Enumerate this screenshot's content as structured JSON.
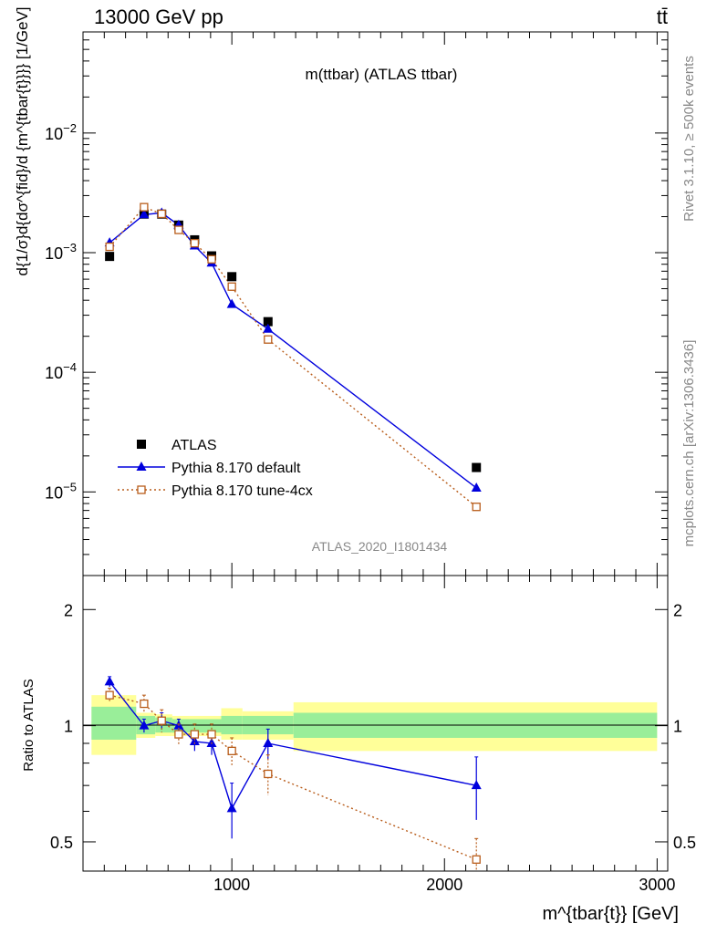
{
  "header": {
    "left": "13000 GeV pp",
    "right": "tt̄"
  },
  "side_labels": {
    "rivet": "Rivet 3.1.10, ≥ 500k events",
    "mcplots": "mcplots.cern.ch [arXiv:1306.3436]"
  },
  "chart_data": [
    {
      "type": "scatter",
      "panel": "main",
      "title": "m(ttbar) (ATLAS ttbar)",
      "watermark": "ATLAS_2020_I1801434",
      "ylabel": "d{1/σ}d{dσ^{fid}/d {m^{tbar{t}}}} [1/GeV]",
      "yscale": "log",
      "ylim": [
        2e-06,
        0.07
      ],
      "xlim": [
        300,
        3050
      ],
      "legend_position": "bottom-left",
      "colors": {
        "data": "#000000",
        "default": "#0000dd",
        "tune": "#b85c1a"
      },
      "series": [
        {
          "name": "ATLAS",
          "marker": "square",
          "x": [
            425,
            587,
            670,
            750,
            825,
            905,
            1000,
            1170,
            2150
          ],
          "y": [
            0.00093,
            0.0021,
            0.0021,
            0.0017,
            0.00128,
            0.00094,
            0.00063,
            0.000265,
            1.6e-05
          ]
        },
        {
          "name": "Pythia 8.170 default",
          "marker": "triangle",
          "x": [
            425,
            587,
            670,
            750,
            825,
            905,
            1000,
            1170,
            2150
          ],
          "y": [
            0.00121,
            0.00208,
            0.00215,
            0.0017,
            0.00114,
            0.00082,
            0.00037,
            0.00023,
            1.08e-05
          ]
        },
        {
          "name": "Pythia 8.170 tune-4cx",
          "marker": "open-square",
          "x": [
            425,
            587,
            670,
            750,
            825,
            905,
            1000,
            1170,
            2150
          ],
          "y": [
            0.00112,
            0.0024,
            0.00211,
            0.00155,
            0.0012,
            0.00088,
            0.00052,
            0.000188,
            7.5e-06
          ]
        }
      ],
      "yticks": [
        {
          "value": 0.01,
          "base": "10",
          "exp": "−2"
        },
        {
          "value": 0.001,
          "base": "10",
          "exp": "−3"
        },
        {
          "value": 0.0001,
          "base": "10",
          "exp": "−4"
        },
        {
          "value": 1e-05,
          "base": "10",
          "exp": "−5"
        }
      ]
    },
    {
      "type": "scatter",
      "panel": "ratio",
      "ylabel": "Ratio to ATLAS",
      "xlabel": "m^{tbar{t}} [GeV]",
      "yscale": "log",
      "ylim": [
        0.42,
        2.45
      ],
      "xlim": [
        300,
        3050
      ],
      "xticks": [
        1000,
        2000,
        3000
      ],
      "yticks": [
        {
          "value": 0.5,
          "label": "0.5"
        },
        {
          "value": 1,
          "label": "1"
        },
        {
          "value": 2,
          "label": "2"
        }
      ],
      "bands": [
        {
          "x0": 340,
          "x1": 550,
          "inner": [
            0.92,
            1.12
          ],
          "outer": [
            0.84,
            1.2
          ]
        },
        {
          "x0": 550,
          "x1": 640,
          "inner": [
            0.95,
            1.06
          ],
          "outer": [
            0.93,
            1.08
          ]
        },
        {
          "x0": 640,
          "x1": 720,
          "inner": [
            0.96,
            1.05
          ],
          "outer": [
            0.94,
            1.07
          ]
        },
        {
          "x0": 720,
          "x1": 800,
          "inner": [
            0.96,
            1.04
          ],
          "outer": [
            0.94,
            1.06
          ]
        },
        {
          "x0": 800,
          "x1": 950,
          "inner": [
            0.96,
            1.04
          ],
          "outer": [
            0.94,
            1.06
          ]
        },
        {
          "x0": 950,
          "x1": 1050,
          "inner": [
            0.95,
            1.06
          ],
          "outer": [
            0.92,
            1.11
          ]
        },
        {
          "x0": 1050,
          "x1": 1290,
          "inner": [
            0.95,
            1.06
          ],
          "outer": [
            0.92,
            1.09
          ]
        },
        {
          "x0": 1290,
          "x1": 3000,
          "inner": [
            0.93,
            1.08
          ],
          "outer": [
            0.86,
            1.15
          ]
        }
      ],
      "series": [
        {
          "name": "Pythia 8.170 default",
          "marker": "triangle",
          "x": [
            425,
            587,
            670,
            750,
            825,
            905,
            1000,
            1170,
            2150
          ],
          "y": [
            1.3,
            1.0,
            1.03,
            1.0,
            0.91,
            0.9,
            0.61,
            0.9,
            0.7
          ],
          "err": [
            0.04,
            0.04,
            0.05,
            0.04,
            0.05,
            0.06,
            0.1,
            0.08,
            0.13
          ]
        },
        {
          "name": "Pythia 8.170 tune-4cx",
          "marker": "open-square",
          "x": [
            425,
            587,
            670,
            750,
            825,
            905,
            1000,
            1170,
            2150
          ],
          "y": [
            1.2,
            1.14,
            1.03,
            0.95,
            0.95,
            0.95,
            0.86,
            0.75,
            0.45
          ],
          "err": [
            0.05,
            0.06,
            0.07,
            0.06,
            0.06,
            0.06,
            0.07,
            0.09,
            0.06
          ]
        }
      ]
    }
  ]
}
